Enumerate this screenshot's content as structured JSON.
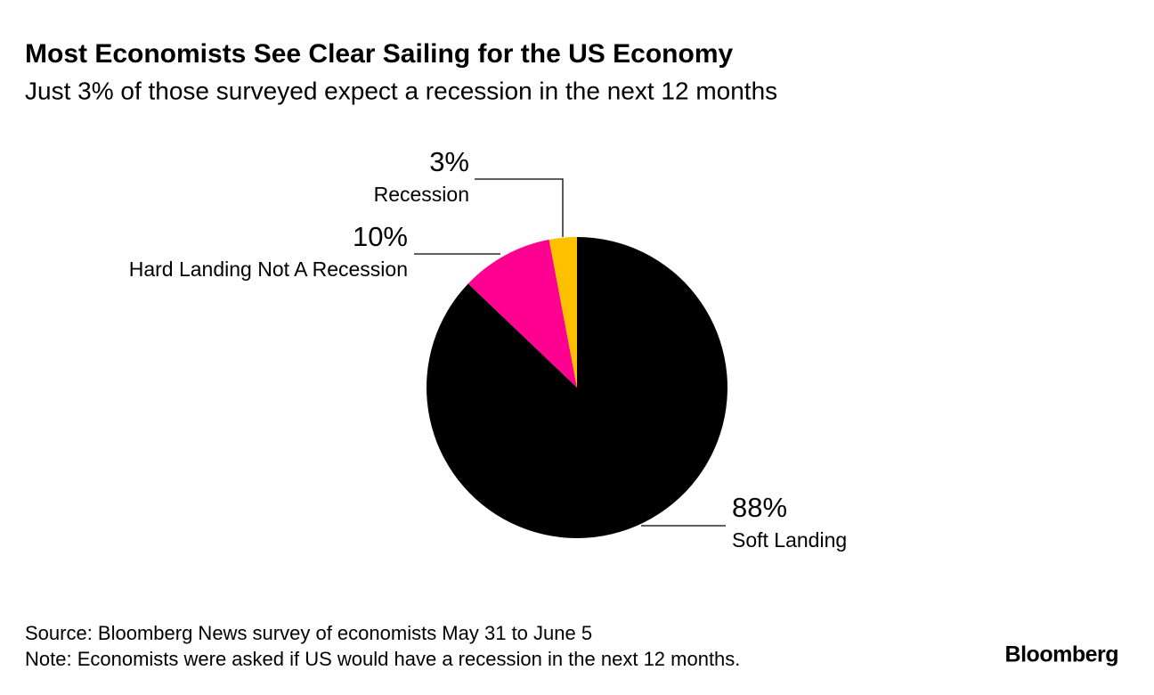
{
  "chart_data": {
    "type": "pie",
    "title": "Most Economists See Clear Sailing for the US Economy",
    "subtitle": "Just 3% of those surveyed expect a recession in the next 12 months",
    "categories": [
      "Soft Landing",
      "Hard Landing Not A Recession",
      "Recession"
    ],
    "values": [
      88,
      10,
      3
    ],
    "value_labels": [
      "88%",
      "10%",
      "3%"
    ],
    "colors": [
      "#000000",
      "#ff0090",
      "#ffc000"
    ],
    "source": "Source: Bloomberg News survey of economists May 31 to June 5",
    "note": "Note: Economists were asked if US would have a recession in the next 12 months.",
    "brand": "Bloomberg"
  }
}
